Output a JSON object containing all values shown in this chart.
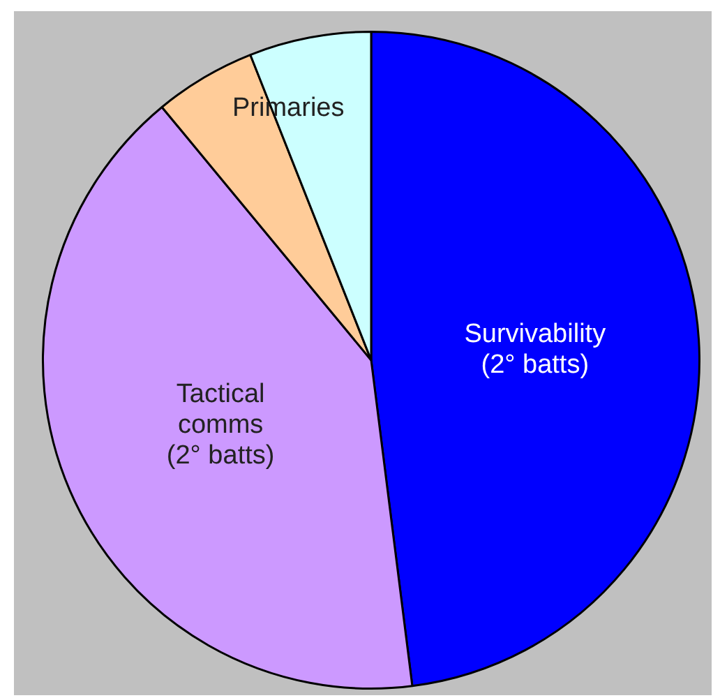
{
  "chart_data": {
    "type": "pie",
    "categories": [
      "Survivability\n(2° batts)",
      "Tactical\ncomms\n(2° batts)",
      null,
      "Primaries"
    ],
    "values": [
      48,
      41,
      5,
      6
    ],
    "colors": [
      "#0000ff",
      "#cc99ff",
      "#ffcc99",
      "#ccffff"
    ],
    "legend": false
  }
}
